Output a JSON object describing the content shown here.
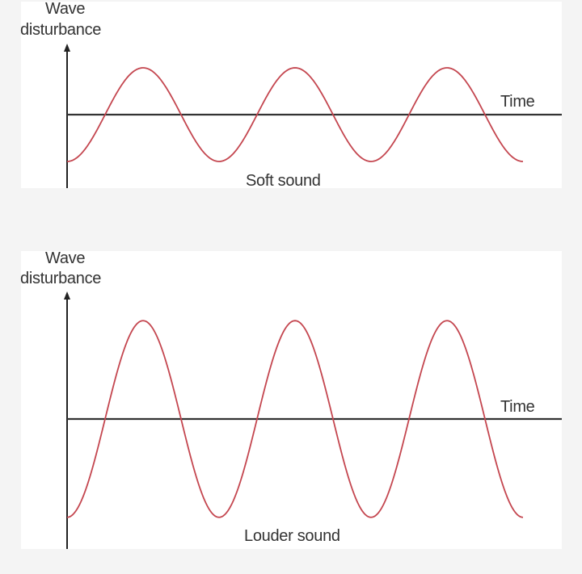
{
  "colors": {
    "wave": "#c4464f",
    "axis": "#222222",
    "background": "#f4f4f4",
    "panel": "#ffffff"
  },
  "panels": [
    {
      "y_label_line1": "Wave",
      "y_label_line2": "disturbance",
      "x_label": "Time",
      "caption": "Soft sound",
      "cycles": 3,
      "relative_amplitude": 1
    },
    {
      "y_label_line1": "Wave",
      "y_label_line2": "disturbance",
      "x_label": "Time",
      "caption": "Louder sound",
      "cycles": 3,
      "relative_amplitude": 2.1
    }
  ]
}
